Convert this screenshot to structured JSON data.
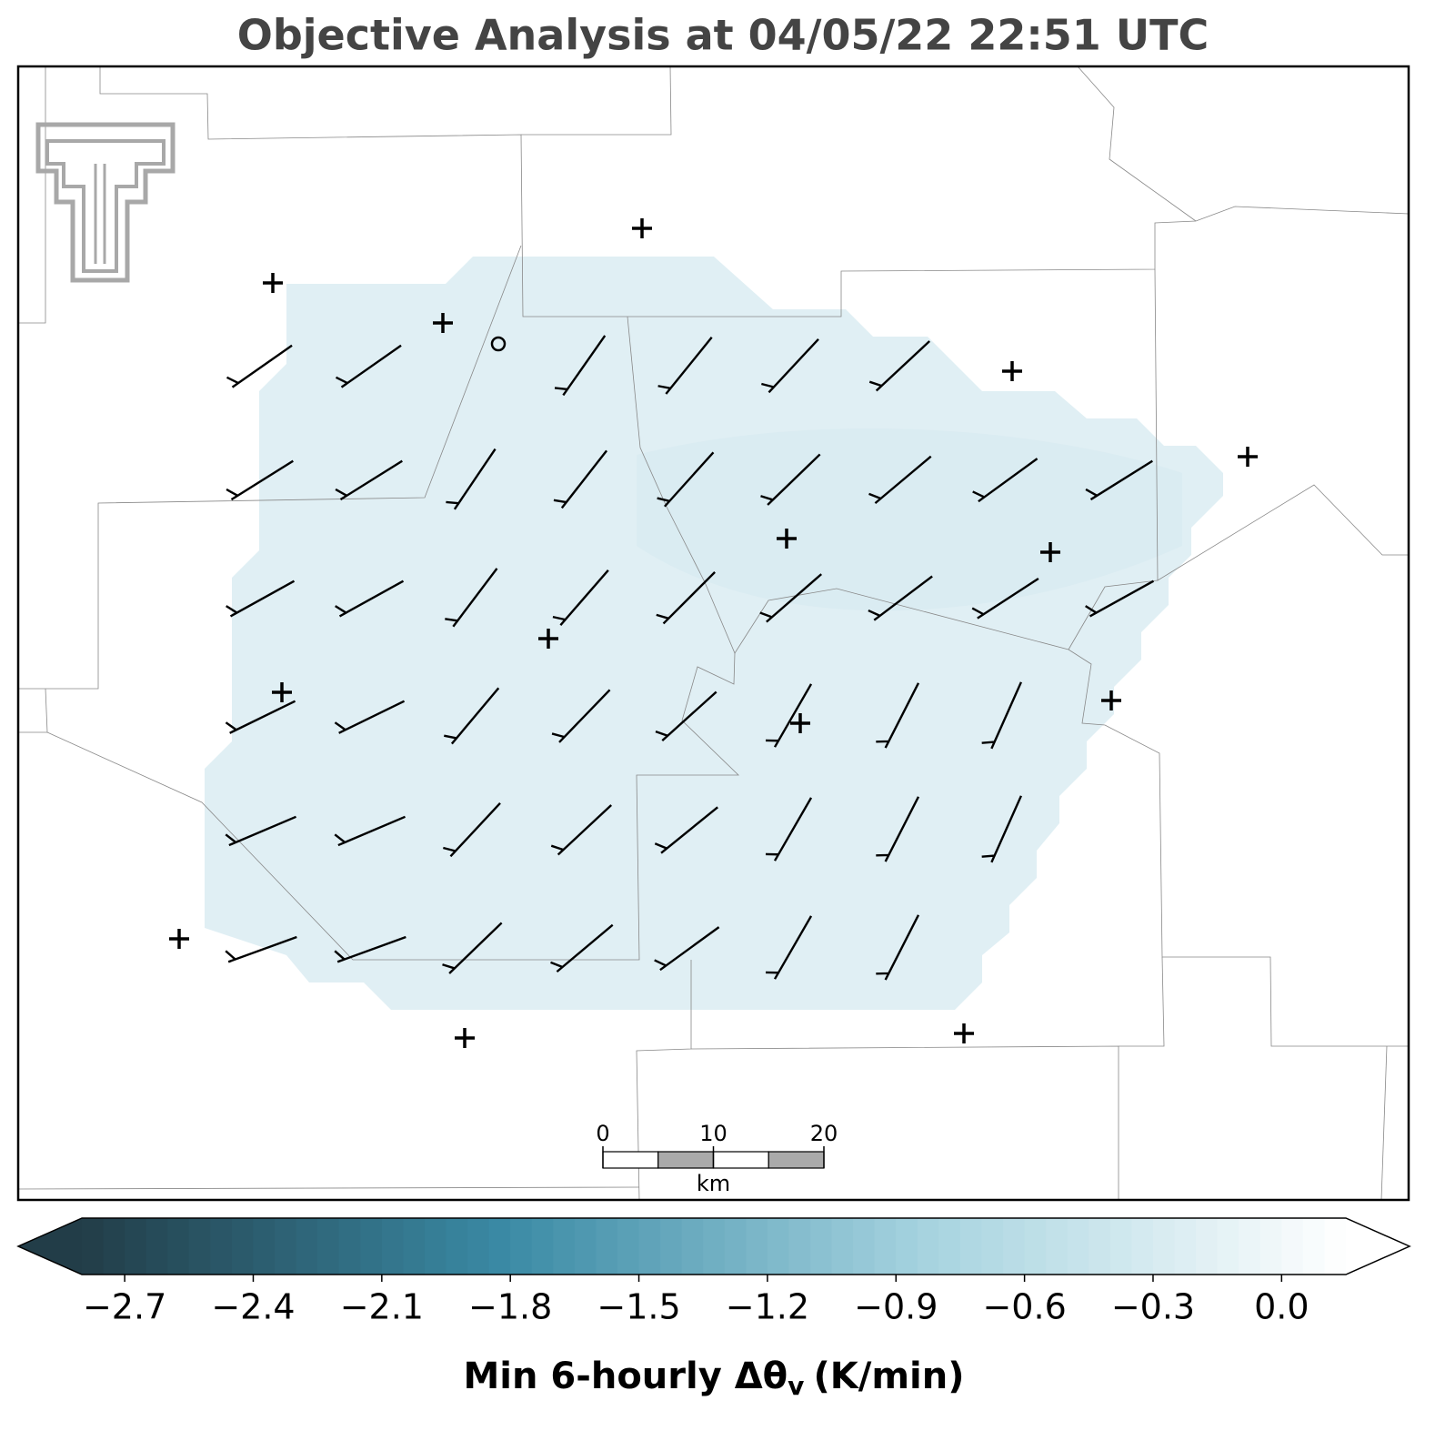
{
  "title": "Objective Analysis at 04/05/22 22:51 UTC",
  "scale_bar": {
    "ticks": [
      0,
      10,
      20
    ],
    "unit": "km"
  },
  "colorbar": {
    "label": "Min 6-hourly Δθ",
    "label_subscript": "v",
    "label_units": "(K/min)",
    "range": [
      -2.8,
      0.15
    ],
    "ticks": [
      {
        "value": -2.7,
        "label": "−2.7"
      },
      {
        "value": -2.4,
        "label": "−2.4"
      },
      {
        "value": -2.1,
        "label": "−2.1"
      },
      {
        "value": -1.8,
        "label": "−1.8"
      },
      {
        "value": -1.5,
        "label": "−1.5"
      },
      {
        "value": -1.2,
        "label": "−1.2"
      },
      {
        "value": -0.9,
        "label": "−0.9"
      },
      {
        "value": -0.6,
        "label": "−0.6"
      },
      {
        "value": -0.3,
        "label": "−0.3"
      },
      {
        "value": 0.0,
        "label": "0.0"
      }
    ],
    "colors": [
      "#223d48",
      "#3a8aa5",
      "#a6d3df",
      "#ffffff"
    ]
  }
}
